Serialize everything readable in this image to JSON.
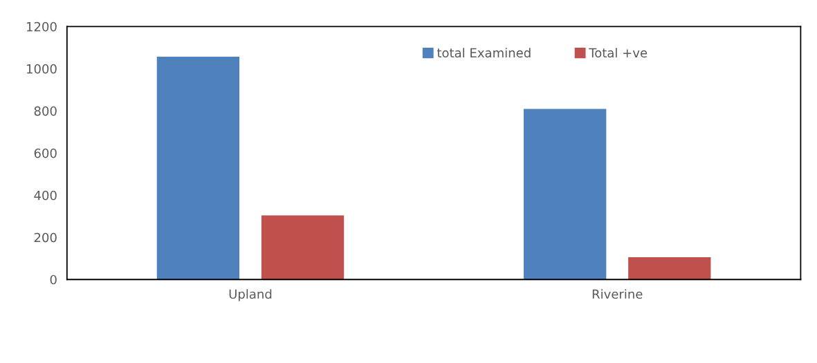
{
  "chart_data": {
    "type": "bar",
    "categories": [
      "Upland",
      "Riverine"
    ],
    "series": [
      {
        "name": "total Examined",
        "color": "#4f81bd",
        "values": [
          1057,
          809
        ]
      },
      {
        "name": "Total +ve",
        "color": "#c0504d",
        "values": [
          304,
          106
        ]
      }
    ],
    "ylim": [
      0,
      1200
    ],
    "yticks": [
      0,
      200,
      400,
      600,
      800,
      1000,
      1200
    ],
    "grid": false,
    "legend": "top right"
  }
}
